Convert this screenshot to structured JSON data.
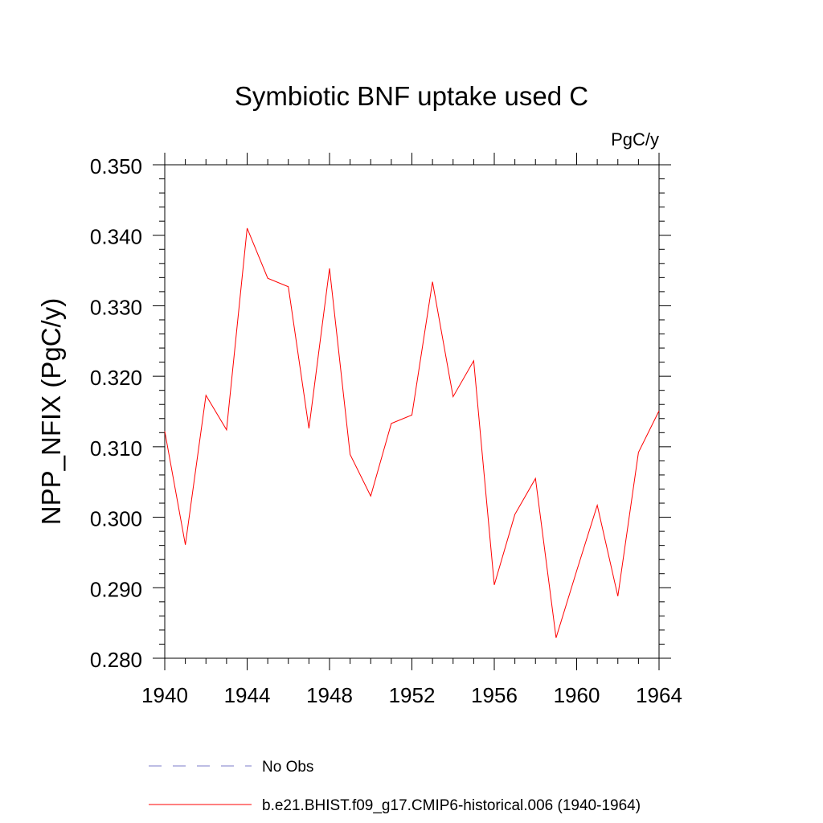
{
  "chart_data": {
    "type": "line",
    "title": "Symbiotic BNF uptake used C",
    "units": "PgC/y",
    "ylabel": "NPP_NFIX  (PgC/y)",
    "xlabel": "",
    "xlim": [
      1940,
      1964
    ],
    "ylim": [
      0.28,
      0.35
    ],
    "x_ticks": [
      1940,
      1944,
      1948,
      1952,
      1956,
      1960,
      1964
    ],
    "x_tick_labels": [
      "1940",
      "1944",
      "1948",
      "1952",
      "1956",
      "1960",
      "1964"
    ],
    "y_ticks": [
      0.28,
      0.29,
      0.3,
      0.31,
      0.32,
      0.33,
      0.34,
      0.35
    ],
    "y_tick_labels": [
      "0.280",
      "0.290",
      "0.300",
      "0.310",
      "0.320",
      "0.330",
      "0.340",
      "0.350"
    ],
    "grid": false,
    "legend_position": "bottom",
    "series": [
      {
        "name": "b.e21.BHIST.f09_g17.CMIP6-historical.006 (1940-1964)",
        "color": "#ff0000",
        "dash": "solid",
        "x": [
          1940,
          1941,
          1942,
          1943,
          1944,
          1945,
          1946,
          1947,
          1948,
          1949,
          1950,
          1951,
          1952,
          1953,
          1954,
          1955,
          1956,
          1957,
          1958,
          1959,
          1960,
          1961,
          1962,
          1963,
          1964
        ],
        "values": [
          0.3122,
          0.2961,
          0.3173,
          0.3124,
          0.341,
          0.3339,
          0.3327,
          0.3126,
          0.3353,
          0.3089,
          0.303,
          0.3133,
          0.3145,
          0.3334,
          0.3171,
          0.3222,
          0.2904,
          0.3004,
          0.3055,
          0.2829,
          0.2924,
          0.3017,
          0.2888,
          0.3092,
          0.3151
        ]
      }
    ],
    "legend": [
      {
        "label": "No Obs",
        "color": "#7b7bc8",
        "dash": "dashed"
      },
      {
        "label": "b.e21.BHIST.f09_g17.CMIP6-historical.006 (1940-1964)",
        "color": "#ff0000",
        "dash": "solid"
      }
    ]
  }
}
